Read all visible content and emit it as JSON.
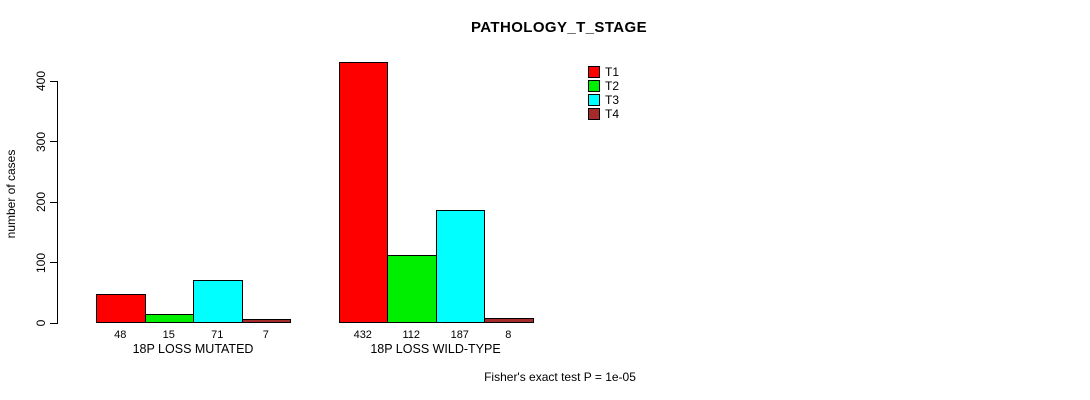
{
  "title": "PATHOLOGY_T_STAGE",
  "footer": "Fisher's exact test P = 1e-05",
  "chart_data": {
    "type": "bar",
    "title": "PATHOLOGY_T_STAGE",
    "xlabel": "",
    "ylabel": "number of cases",
    "ylim": [
      0,
      400
    ],
    "yticks": [
      0,
      100,
      200,
      300,
      400
    ],
    "grid": false,
    "legend_position": "top-right",
    "categories": [
      "18P LOSS MUTATED",
      "18P LOSS WILD-TYPE"
    ],
    "series": [
      {
        "name": "T1",
        "color": "#ff0000",
        "values": [
          48,
          432
        ]
      },
      {
        "name": "T2",
        "color": "#00ee00",
        "values": [
          15,
          112
        ]
      },
      {
        "name": "T3",
        "color": "#00ffff",
        "values": [
          71,
          187
        ]
      },
      {
        "name": "T4",
        "color": "#a52a2a",
        "values": [
          7,
          8
        ]
      }
    ],
    "bar_value_labels": [
      [
        "48",
        "15",
        "71",
        "7"
      ],
      [
        "432",
        "112",
        "187",
        "8"
      ]
    ],
    "annotation": "Fisher's exact test P = 1e-05"
  }
}
